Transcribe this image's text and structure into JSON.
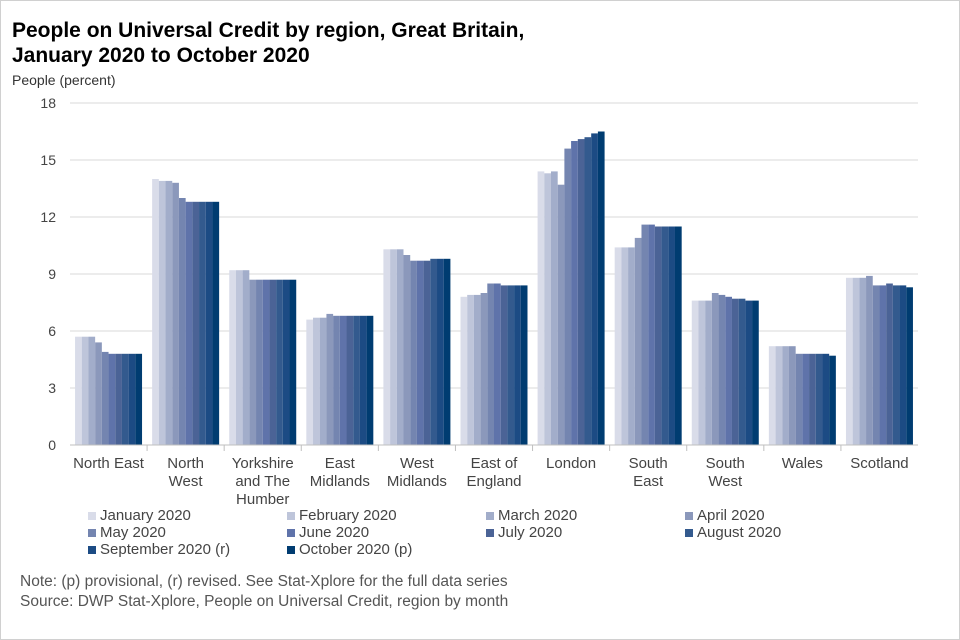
{
  "chart_data": {
    "type": "bar",
    "title": "People on Universal Credit by region, Great Britain, January 2020 to October 2020",
    "title_lines": [
      "People on Universal Credit by region, Great Britain,",
      "January 2020 to October 2020"
    ],
    "ylabel": "People (percent)",
    "xlabel": "",
    "ylim": [
      0,
      18
    ],
    "yticks": [
      0,
      3,
      6,
      9,
      12,
      15,
      18
    ],
    "grid": true,
    "legend_position": "bottom",
    "categories": [
      "North East",
      "North West",
      "Yorkshire and The Humber",
      "East Midlands",
      "West Midlands",
      "East of England",
      "London",
      "South East",
      "South West",
      "Wales",
      "Scotland"
    ],
    "category_lines": [
      [
        "North East"
      ],
      [
        "North",
        "West"
      ],
      [
        "Yorkshire",
        "and The",
        "Humber"
      ],
      [
        "East",
        "Midlands"
      ],
      [
        "West",
        "Midlands"
      ],
      [
        "East of",
        "England"
      ],
      [
        "London"
      ],
      [
        "South",
        "East"
      ],
      [
        "South",
        "West"
      ],
      [
        "Wales"
      ],
      [
        "Scotland"
      ]
    ],
    "series": [
      {
        "name": "January 2020",
        "color": "#D9DCE9",
        "values": [
          5.7,
          14.0,
          9.2,
          6.6,
          10.3,
          7.8,
          14.4,
          10.4,
          7.6,
          5.2,
          8.8
        ]
      },
      {
        "name": "February 2020",
        "color": "#BEC5DA",
        "values": [
          5.7,
          13.9,
          9.2,
          6.7,
          10.3,
          7.9,
          14.3,
          10.4,
          7.6,
          5.2,
          8.8
        ]
      },
      {
        "name": "March 2020",
        "color": "#A2ADCA",
        "values": [
          5.7,
          13.9,
          9.2,
          6.7,
          10.3,
          7.9,
          14.4,
          10.4,
          7.6,
          5.2,
          8.8
        ]
      },
      {
        "name": "April 2020",
        "color": "#8B98BB",
        "values": [
          5.4,
          13.8,
          8.7,
          6.9,
          10.0,
          8.0,
          13.7,
          10.9,
          8.0,
          5.2,
          8.9
        ]
      },
      {
        "name": "May 2020",
        "color": "#7485B0",
        "values": [
          4.9,
          13.0,
          8.7,
          6.8,
          9.7,
          8.5,
          15.6,
          11.6,
          7.9,
          4.8,
          8.4
        ]
      },
      {
        "name": "June 2020",
        "color": "#5F73AA",
        "values": [
          4.8,
          12.8,
          8.7,
          6.8,
          9.7,
          8.5,
          16.0,
          11.6,
          7.8,
          4.8,
          8.4
        ]
      },
      {
        "name": "July 2020",
        "color": "#4B6396",
        "values": [
          4.8,
          12.8,
          8.7,
          6.8,
          9.7,
          8.4,
          16.1,
          11.5,
          7.7,
          4.8,
          8.5
        ]
      },
      {
        "name": "August 2020",
        "color": "#335A8E",
        "values": [
          4.8,
          12.8,
          8.7,
          6.8,
          9.8,
          8.4,
          16.2,
          11.5,
          7.7,
          4.8,
          8.4
        ]
      },
      {
        "name": "September 2020 (r)",
        "color": "#1C4B84",
        "values": [
          4.8,
          12.8,
          8.7,
          6.8,
          9.8,
          8.4,
          16.4,
          11.5,
          7.6,
          4.8,
          8.4
        ]
      },
      {
        "name": "October 2020 (p)",
        "color": "#003C71",
        "values": [
          4.8,
          12.8,
          8.7,
          6.8,
          9.8,
          8.4,
          16.5,
          11.5,
          7.6,
          4.7,
          8.3
        ]
      }
    ]
  },
  "notes": {
    "note": "Note: (p) provisional, (r) revised. See Stat-Xplore for the full data series",
    "source": "Source: DWP Stat-Xplore, People on Universal Credit, region by month"
  }
}
